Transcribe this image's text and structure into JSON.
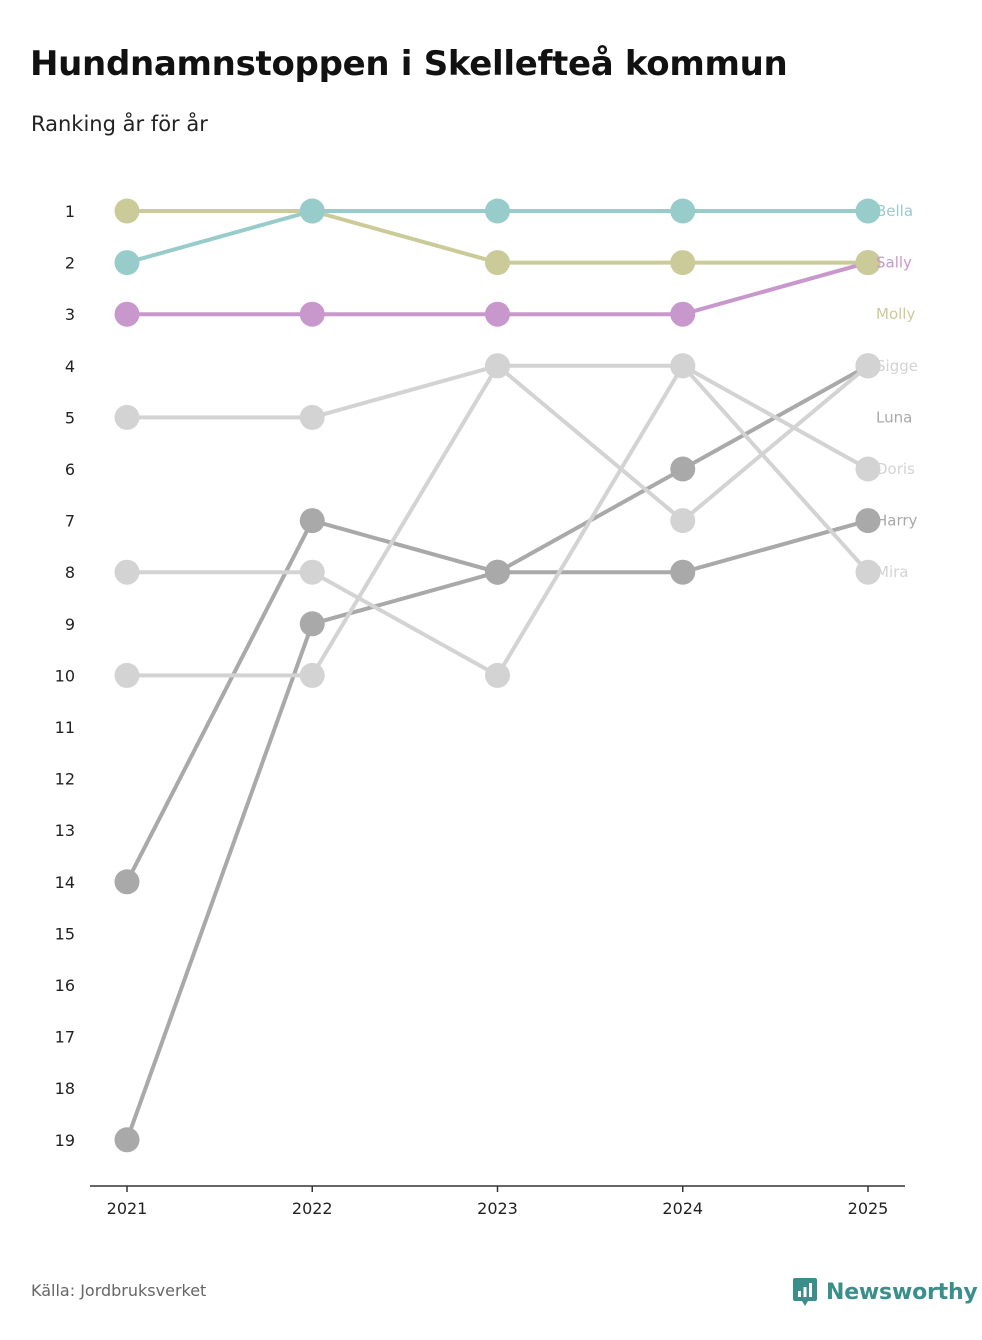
{
  "header": {
    "title": "Hundnamnstoppen i Skellefteå kommun",
    "subtitle": "Ranking år för år"
  },
  "footer": {
    "source": "Källa: Jordbruksverket",
    "brand": "Newsworthy"
  },
  "colors": {
    "axis": "#333333",
    "brand": "#3a8f8a"
  },
  "chart_data": {
    "type": "line",
    "x": [
      "2021",
      "2022",
      "2023",
      "2024",
      "2025"
    ],
    "y_ticks": [
      1,
      2,
      3,
      4,
      5,
      6,
      7,
      8,
      9,
      10,
      11,
      12,
      13,
      14,
      15,
      16,
      17,
      18,
      19
    ],
    "ylim": [
      1,
      19
    ],
    "y_reversed": true,
    "grid": false,
    "legend": "direct labels at right end of lines",
    "series": [
      {
        "name": "Harry",
        "values": [
          14,
          7,
          8,
          8,
          7
        ],
        "color": "#a9a9a9"
      },
      {
        "name": "Luna",
        "values": [
          19,
          9,
          8,
          6,
          4
        ],
        "color": "#a9a9a9"
      },
      {
        "name": "Mira",
        "values": [
          10,
          10,
          4,
          4,
          8
        ],
        "color": "#d3d3d3"
      },
      {
        "name": "Doris",
        "values": [
          8,
          8,
          10,
          4,
          6
        ],
        "color": "#d3d3d3"
      },
      {
        "name": "Sigge",
        "values": [
          5,
          5,
          4,
          7,
          4
        ],
        "color": "#d3d3d3"
      },
      {
        "name": "Sally",
        "values": [
          3,
          3,
          3,
          3,
          2
        ],
        "color": "#c898cd"
      },
      {
        "name": "Molly",
        "values": [
          1,
          1,
          2,
          2,
          2
        ],
        "color": "#cbcb99"
      },
      {
        "name": "Bella",
        "values": [
          2,
          1,
          1,
          1,
          1
        ],
        "color": "#97cccb"
      }
    ],
    "label_order": [
      "Bella",
      "Sally",
      "Molly",
      "Sigge",
      "Luna",
      "Doris",
      "Harry",
      "Mira"
    ]
  }
}
